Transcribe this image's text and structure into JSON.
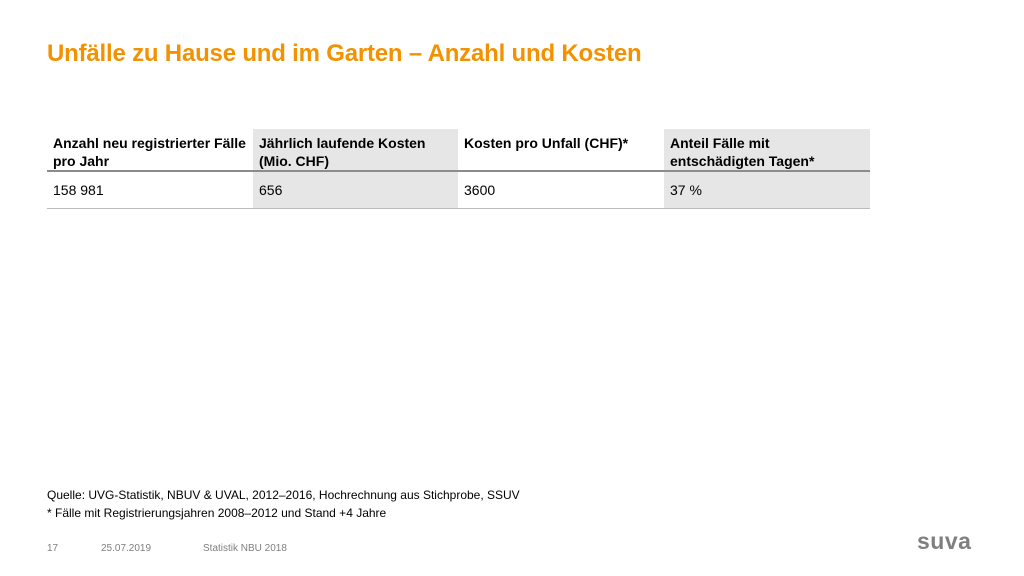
{
  "slide": {
    "title": "Unfälle zu Hause und im Garten – Anzahl und Kosten"
  },
  "table": {
    "headers": [
      "Anzahl neu registrierter Fälle pro Jahr",
      "Jährlich laufende Kosten (Mio. CHF)",
      "Kosten pro Unfall (CHF)*",
      "Anteil Fälle mit entschädigten Tagen*"
    ],
    "rows": [
      [
        "158 981",
        "656",
        "3600",
        "37 %"
      ]
    ]
  },
  "notes": {
    "source": "Quelle: UVG-Statistik, NBUV & UVAL, 2012–2016, Hochrechnung aus Stichprobe, SSUV",
    "footnote": "* Fälle mit Registrierungsjahren 2008–2012 und Stand +4 Jahre"
  },
  "footer": {
    "page_number": "17",
    "date": "25.07.2019",
    "caption": "Statistik NBU 2018",
    "logo_text": "suva"
  },
  "colors": {
    "title": "#f39200",
    "header_shade": "#e6e6e6",
    "footer_text": "#7f7f7f"
  }
}
